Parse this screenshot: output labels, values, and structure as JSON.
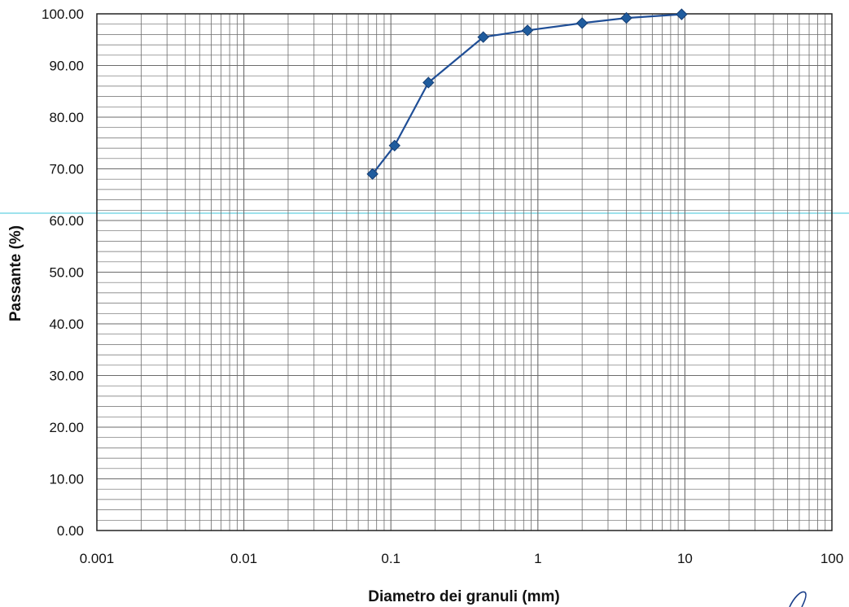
{
  "chart_data": {
    "type": "line",
    "title": "",
    "xlabel": "Diametro dei granuli (mm)",
    "ylabel": "Passante (%)",
    "x_scale": "log",
    "xlim": [
      0.001,
      100
    ],
    "ylim": [
      0,
      100
    ],
    "grid": true,
    "legend": "none",
    "x_ticks": [
      "0.001",
      "0.01",
      "0.1",
      "1",
      "10",
      "100"
    ],
    "y_ticks": [
      "0.00",
      "10.00",
      "20.00",
      "30.00",
      "40.00",
      "50.00",
      "60.00",
      "70.00",
      "80.00",
      "90.00",
      "100.00"
    ],
    "series": [
      {
        "x": [
          0.075,
          0.106,
          0.18,
          0.425,
          0.85,
          2,
          4,
          9.5
        ],
        "y": [
          69.0,
          74.5,
          86.7,
          95.5,
          96.8,
          98.2,
          99.2,
          99.9
        ],
        "color": "#1f4e96",
        "marker": "diamond"
      }
    ]
  },
  "colors": {
    "grid": "#6b6b6b",
    "axis": "#222222",
    "line": "#1f4e96",
    "marker": "#1f5c9e",
    "scan_line": "#7fd9e6"
  }
}
